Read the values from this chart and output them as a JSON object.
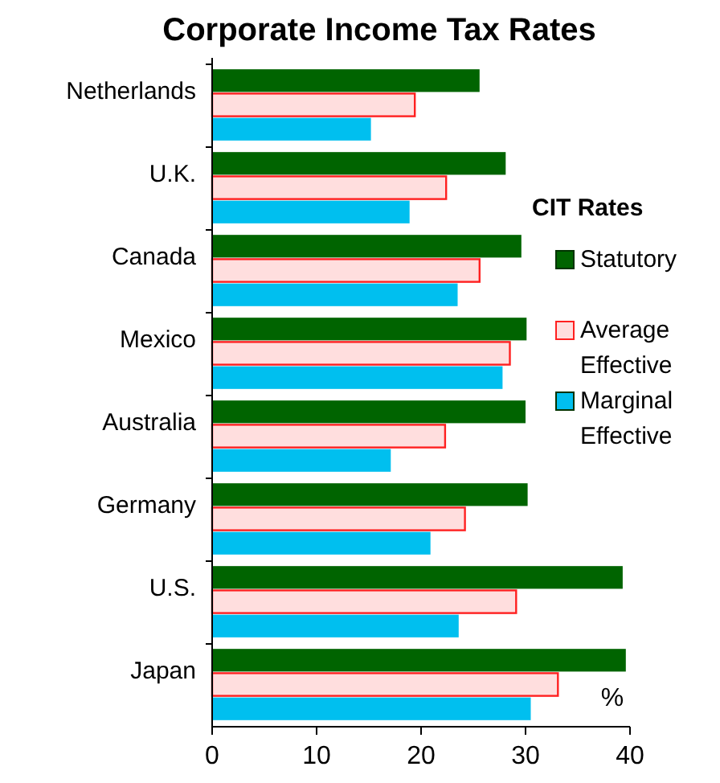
{
  "chart_data": {
    "type": "bar",
    "orientation": "horizontal",
    "title": "Corporate Income Tax Rates",
    "legend_title": "CIT Rates",
    "legend": "right",
    "categories": [
      "Netherlands",
      "U.K.",
      "Canada",
      "Mexico",
      "Australia",
      "Germany",
      "U.S.",
      "Japan"
    ],
    "xlim": [
      0,
      40
    ],
    "xticks": [
      0,
      10,
      20,
      30,
      40
    ],
    "grid": false,
    "annotations": [
      "%"
    ],
    "series": [
      {
        "name": "Statutory",
        "color": "#006400",
        "values": [
          25.6,
          28.1,
          29.6,
          30.1,
          30.0,
          30.2,
          39.3,
          39.6
        ]
      },
      {
        "name": "Average Effective",
        "color": "#ff2020",
        "values": [
          19.4,
          22.4,
          25.6,
          28.5,
          22.3,
          24.2,
          29.1,
          33.1
        ]
      },
      {
        "name": "Marginal Effective",
        "color": "#00bfef",
        "values": [
          15.2,
          18.9,
          23.5,
          27.8,
          17.1,
          20.9,
          23.6,
          30.5
        ]
      }
    ]
  }
}
